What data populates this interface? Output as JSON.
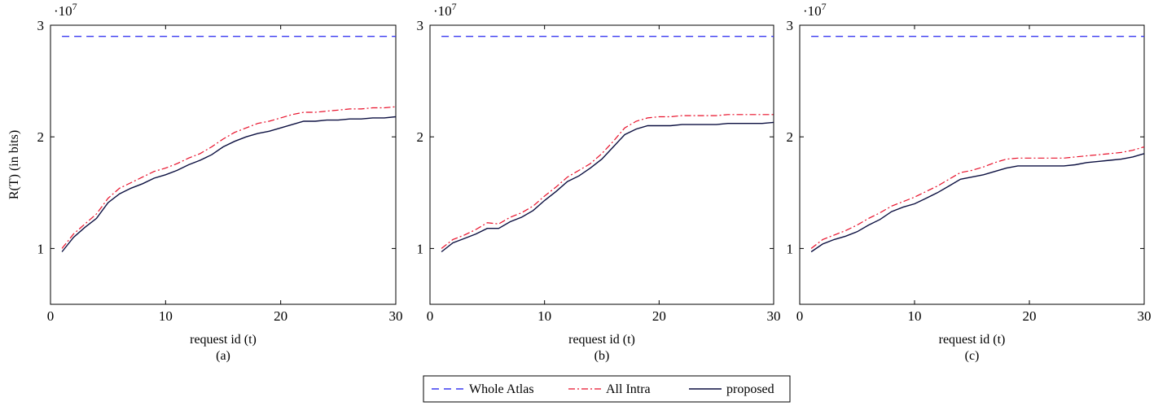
{
  "chart_data": [
    {
      "type": "line",
      "caption": "(a)",
      "xlabel": "request id (t)",
      "ylabel": "R(T) (in bits)",
      "multiplier": "·10",
      "multiplier_exp": "7",
      "xlim": [
        0,
        30
      ],
      "ylim": [
        0.5,
        3
      ],
      "xticks": [
        0,
        10,
        20,
        30
      ],
      "yticks": [
        1,
        2,
        3
      ],
      "x": [
        1,
        2,
        3,
        4,
        5,
        6,
        7,
        8,
        9,
        10,
        11,
        12,
        13,
        14,
        15,
        16,
        17,
        18,
        19,
        20,
        21,
        22,
        23,
        24,
        25,
        26,
        27,
        28,
        29,
        30
      ],
      "series": [
        {
          "name": "Whole Atlas",
          "values": [
            2.9,
            2.9,
            2.9,
            2.9,
            2.9,
            2.9,
            2.9,
            2.9,
            2.9,
            2.9,
            2.9,
            2.9,
            2.9,
            2.9,
            2.9,
            2.9,
            2.9,
            2.9,
            2.9,
            2.9,
            2.9,
            2.9,
            2.9,
            2.9,
            2.9,
            2.9,
            2.9,
            2.9,
            2.9,
            2.9
          ]
        },
        {
          "name": "All Intra",
          "values": [
            1.0,
            1.13,
            1.22,
            1.31,
            1.45,
            1.54,
            1.59,
            1.64,
            1.69,
            1.72,
            1.76,
            1.81,
            1.85,
            1.91,
            1.98,
            2.04,
            2.08,
            2.12,
            2.14,
            2.17,
            2.2,
            2.22,
            2.22,
            2.23,
            2.24,
            2.25,
            2.25,
            2.26,
            2.26,
            2.27
          ]
        },
        {
          "name": "proposed",
          "values": [
            0.97,
            1.1,
            1.19,
            1.27,
            1.41,
            1.49,
            1.54,
            1.58,
            1.63,
            1.66,
            1.7,
            1.75,
            1.79,
            1.84,
            1.91,
            1.96,
            2.0,
            2.03,
            2.05,
            2.08,
            2.11,
            2.14,
            2.14,
            2.15,
            2.15,
            2.16,
            2.16,
            2.17,
            2.17,
            2.18
          ]
        }
      ]
    },
    {
      "type": "line",
      "caption": "(b)",
      "xlabel": "request id (t)",
      "ylabel": "",
      "multiplier": "·10",
      "multiplier_exp": "7",
      "xlim": [
        0,
        30
      ],
      "ylim": [
        0.5,
        3
      ],
      "xticks": [
        0,
        10,
        20,
        30
      ],
      "yticks": [
        1,
        2,
        3
      ],
      "x": [
        1,
        2,
        3,
        4,
        5,
        6,
        7,
        8,
        9,
        10,
        11,
        12,
        13,
        14,
        15,
        16,
        17,
        18,
        19,
        20,
        21,
        22,
        23,
        24,
        25,
        26,
        27,
        28,
        29,
        30
      ],
      "series": [
        {
          "name": "Whole Atlas",
          "values": [
            2.9,
            2.9,
            2.9,
            2.9,
            2.9,
            2.9,
            2.9,
            2.9,
            2.9,
            2.9,
            2.9,
            2.9,
            2.9,
            2.9,
            2.9,
            2.9,
            2.9,
            2.9,
            2.9,
            2.9,
            2.9,
            2.9,
            2.9,
            2.9,
            2.9,
            2.9,
            2.9,
            2.9,
            2.9,
            2.9
          ]
        },
        {
          "name": "All Intra",
          "values": [
            1.0,
            1.08,
            1.12,
            1.17,
            1.23,
            1.22,
            1.28,
            1.32,
            1.38,
            1.47,
            1.55,
            1.64,
            1.7,
            1.76,
            1.85,
            1.96,
            2.08,
            2.14,
            2.17,
            2.18,
            2.18,
            2.19,
            2.19,
            2.19,
            2.19,
            2.2,
            2.2,
            2.2,
            2.2,
            2.2
          ]
        },
        {
          "name": "proposed",
          "values": [
            0.97,
            1.05,
            1.09,
            1.13,
            1.18,
            1.18,
            1.24,
            1.28,
            1.34,
            1.43,
            1.51,
            1.6,
            1.65,
            1.72,
            1.8,
            1.91,
            2.02,
            2.07,
            2.1,
            2.1,
            2.1,
            2.11,
            2.11,
            2.11,
            2.11,
            2.12,
            2.12,
            2.12,
            2.12,
            2.13
          ]
        }
      ]
    },
    {
      "type": "line",
      "caption": "(c)",
      "xlabel": "request id (t)",
      "ylabel": "",
      "multiplier": "·10",
      "multiplier_exp": "7",
      "xlim": [
        0,
        30
      ],
      "ylim": [
        0.5,
        3
      ],
      "xticks": [
        0,
        10,
        20,
        30
      ],
      "yticks": [
        1,
        2,
        3
      ],
      "x": [
        1,
        2,
        3,
        4,
        5,
        6,
        7,
        8,
        9,
        10,
        11,
        12,
        13,
        14,
        15,
        16,
        17,
        18,
        19,
        20,
        21,
        22,
        23,
        24,
        25,
        26,
        27,
        28,
        29,
        30
      ],
      "series": [
        {
          "name": "Whole Atlas",
          "values": [
            2.9,
            2.9,
            2.9,
            2.9,
            2.9,
            2.9,
            2.9,
            2.9,
            2.9,
            2.9,
            2.9,
            2.9,
            2.9,
            2.9,
            2.9,
            2.9,
            2.9,
            2.9,
            2.9,
            2.9,
            2.9,
            2.9,
            2.9,
            2.9,
            2.9,
            2.9,
            2.9,
            2.9,
            2.9,
            2.9
          ]
        },
        {
          "name": "All Intra",
          "values": [
            1.0,
            1.08,
            1.12,
            1.16,
            1.21,
            1.27,
            1.32,
            1.38,
            1.42,
            1.46,
            1.51,
            1.56,
            1.62,
            1.68,
            1.7,
            1.73,
            1.77,
            1.8,
            1.81,
            1.81,
            1.81,
            1.81,
            1.81,
            1.82,
            1.83,
            1.84,
            1.85,
            1.86,
            1.88,
            1.91
          ]
        },
        {
          "name": "proposed",
          "values": [
            0.97,
            1.04,
            1.08,
            1.11,
            1.15,
            1.21,
            1.26,
            1.33,
            1.37,
            1.4,
            1.45,
            1.5,
            1.56,
            1.62,
            1.64,
            1.66,
            1.69,
            1.72,
            1.74,
            1.74,
            1.74,
            1.74,
            1.74,
            1.75,
            1.77,
            1.78,
            1.79,
            1.8,
            1.82,
            1.85
          ]
        }
      ]
    }
  ],
  "legend": {
    "items": [
      {
        "name": "Whole Atlas",
        "color": "#3a3af0",
        "dash": "dashed"
      },
      {
        "name": "All Intra",
        "color": "#e8102a",
        "dash": "dashdot"
      },
      {
        "name": "proposed",
        "color": "#0b0f40",
        "dash": "solid"
      }
    ]
  },
  "colors": {
    "whole_atlas": "#3a3af0",
    "all_intra": "#e8102a",
    "proposed": "#0b0f40"
  }
}
